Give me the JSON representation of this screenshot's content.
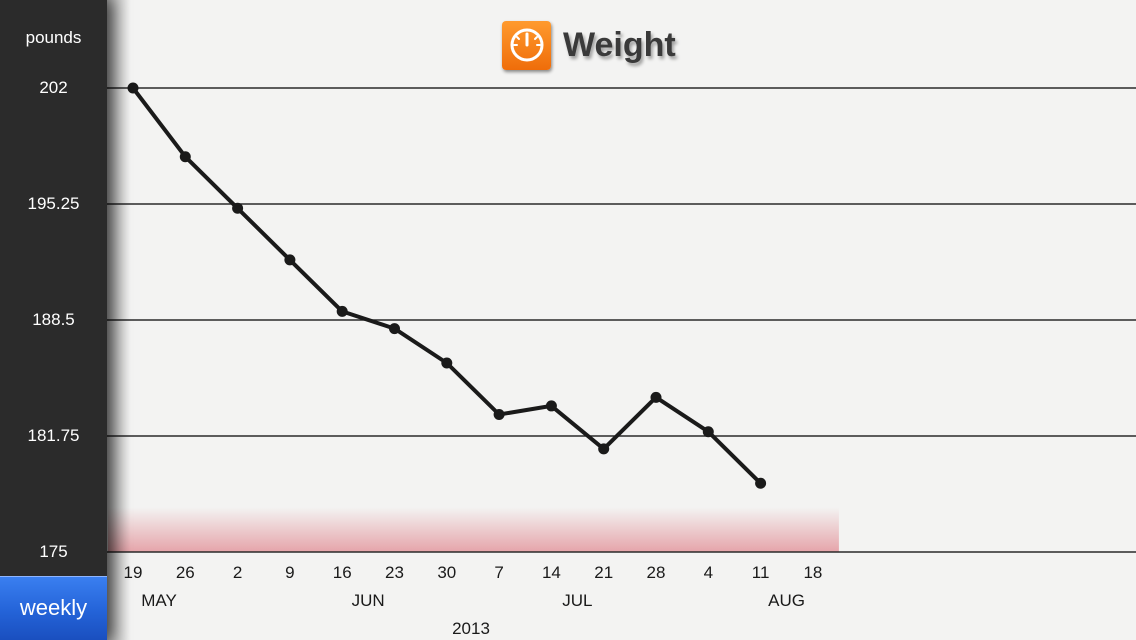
{
  "header": {
    "title": "Weight",
    "icon": "scale-gauge-icon",
    "icon_color": "#f57c12"
  },
  "sidebar": {
    "unit_label": "pounds",
    "mode_button": "weekly",
    "mode_button_color": "#2463d8"
  },
  "chart_data": {
    "type": "line",
    "title": "Weight",
    "ylabel": "pounds",
    "xlabel": "",
    "ylim": [
      175,
      202
    ],
    "yticks": [
      "202",
      "195.25",
      "188.5",
      "181.75",
      "175"
    ],
    "ytick_values": [
      202,
      195.25,
      188.5,
      181.75,
      175
    ],
    "x_ticks": [
      "19",
      "26",
      "2",
      "9",
      "16",
      "23",
      "30",
      "7",
      "14",
      "21",
      "28",
      "4",
      "11",
      "18"
    ],
    "months": [
      {
        "label": "MAY",
        "at_tick": 0
      },
      {
        "label": "JUN",
        "at_tick": 4
      },
      {
        "label": "JUL",
        "at_tick": 8
      },
      {
        "label": "AUG",
        "at_tick": 12
      }
    ],
    "year": "2013",
    "x": [
      "2013-05-19",
      "2013-05-26",
      "2013-06-02",
      "2013-06-09",
      "2013-06-16",
      "2013-06-23",
      "2013-06-30",
      "2013-07-07",
      "2013-07-14",
      "2013-07-21",
      "2013-07-28",
      "2013-08-04",
      "2013-08-11"
    ],
    "series": [
      {
        "values": [
          202.0,
          198.0,
          195.0,
          192.0,
          189.0,
          188.0,
          186.0,
          183.0,
          183.5,
          181.0,
          184.0,
          182.0,
          179.0
        ]
      }
    ],
    "goal_band": {
      "from": 175,
      "to": 177.6,
      "color": "#e5a0a6"
    },
    "line_color": "#1a1a1a",
    "grid": true
  }
}
